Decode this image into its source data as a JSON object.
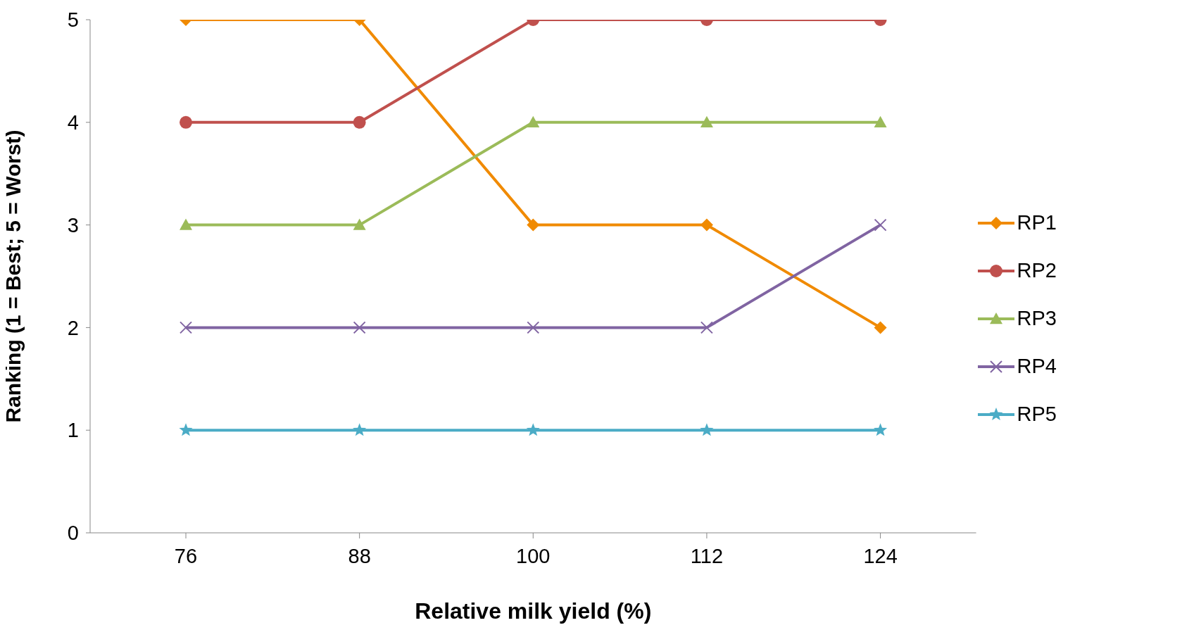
{
  "chart_data": {
    "type": "line",
    "xlabel": "Relative milk yield (%)",
    "ylabel": "Ranking (1 = Best; 5 = Worst)",
    "categories": [
      "76",
      "88",
      "100",
      "112",
      "124"
    ],
    "series": [
      {
        "name": "RP1",
        "color": "#f08a00",
        "marker": "diamond",
        "values": [
          5,
          5,
          3,
          3,
          2
        ]
      },
      {
        "name": "RP2",
        "color": "#c0504d",
        "marker": "circle",
        "values": [
          4,
          4,
          5,
          5,
          5
        ]
      },
      {
        "name": "RP3",
        "color": "#9bbb59",
        "marker": "triangle",
        "values": [
          3,
          3,
          4,
          4,
          4
        ]
      },
      {
        "name": "RP4",
        "color": "#8064a2",
        "marker": "cross",
        "values": [
          2,
          2,
          2,
          2,
          3
        ]
      },
      {
        "name": "RP5",
        "color": "#4bacc6",
        "marker": "star",
        "values": [
          1,
          1,
          1,
          1,
          1
        ]
      }
    ],
    "ylim": [
      0,
      5
    ],
    "yticks": [
      0,
      1,
      2,
      3,
      4,
      5
    ],
    "grid": false,
    "legend": "right",
    "line_style": "solid"
  }
}
